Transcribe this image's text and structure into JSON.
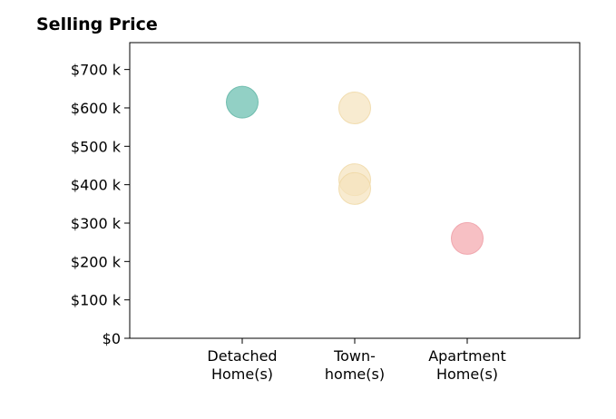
{
  "chart_data": {
    "type": "scatter",
    "title": "Selling Price",
    "xlabel": "",
    "ylabel": "",
    "categories": [
      "Detached\nHome(s)",
      "Town-\nhome(s)",
      "Apartment\nHome(s)"
    ],
    "y_tick_labels": [
      "$0",
      "$100 k",
      "$200 k",
      "$300 k",
      "$400 k",
      "$500 k",
      "$600 k",
      "$700 k"
    ],
    "y_ticks": [
      0,
      100,
      200,
      300,
      400,
      500,
      600,
      700
    ],
    "ylim": [
      0,
      770
    ],
    "xlim": [
      -1,
      3
    ],
    "grid": false,
    "legend": "none",
    "series": [
      {
        "color": "#7fc8bb",
        "stroke": "#5db3a3",
        "opacity": 0.85,
        "points": [
          {
            "x": 0,
            "y": 615
          }
        ]
      },
      {
        "color": "#f5e3bc",
        "stroke": "#efd7a3",
        "opacity": 0.7,
        "points": [
          {
            "x": 1,
            "y": 600
          },
          {
            "x": 1,
            "y": 413
          },
          {
            "x": 1,
            "y": 390
          }
        ]
      },
      {
        "color": "#f6b9be",
        "stroke": "#ee9aa2",
        "opacity": 0.9,
        "points": [
          {
            "x": 2,
            "y": 260
          }
        ]
      }
    ]
  }
}
